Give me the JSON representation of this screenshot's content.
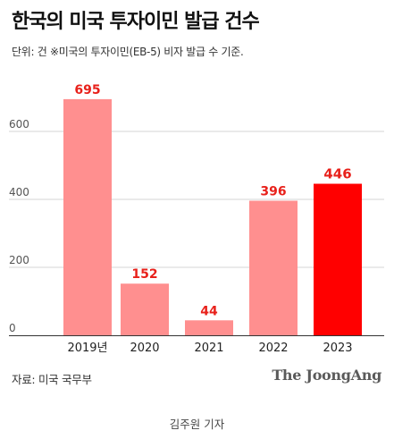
{
  "title": "한국의 미국 투자이민 발급 건수",
  "subtitle": "단위: 건  ※미국의 투자이민(EB-5) 비자 발급 수 기준.",
  "source": "자료: 미국 국무부",
  "logo": "The JoongAng",
  "reporter": "김주원 기자",
  "colors": {
    "bar": "#ff8f8f",
    "highlight": "#ff0000",
    "label": "#e8211b",
    "grid": "#d6d6d6"
  },
  "chart_data": {
    "type": "bar",
    "categories": [
      "2019년",
      "2020",
      "2021",
      "2022",
      "2023"
    ],
    "values": [
      695,
      152,
      44,
      396,
      446
    ],
    "highlight_index": 4,
    "yticks": [
      0,
      200,
      400,
      600
    ],
    "ylim": [
      0,
      720
    ],
    "grid": true
  }
}
